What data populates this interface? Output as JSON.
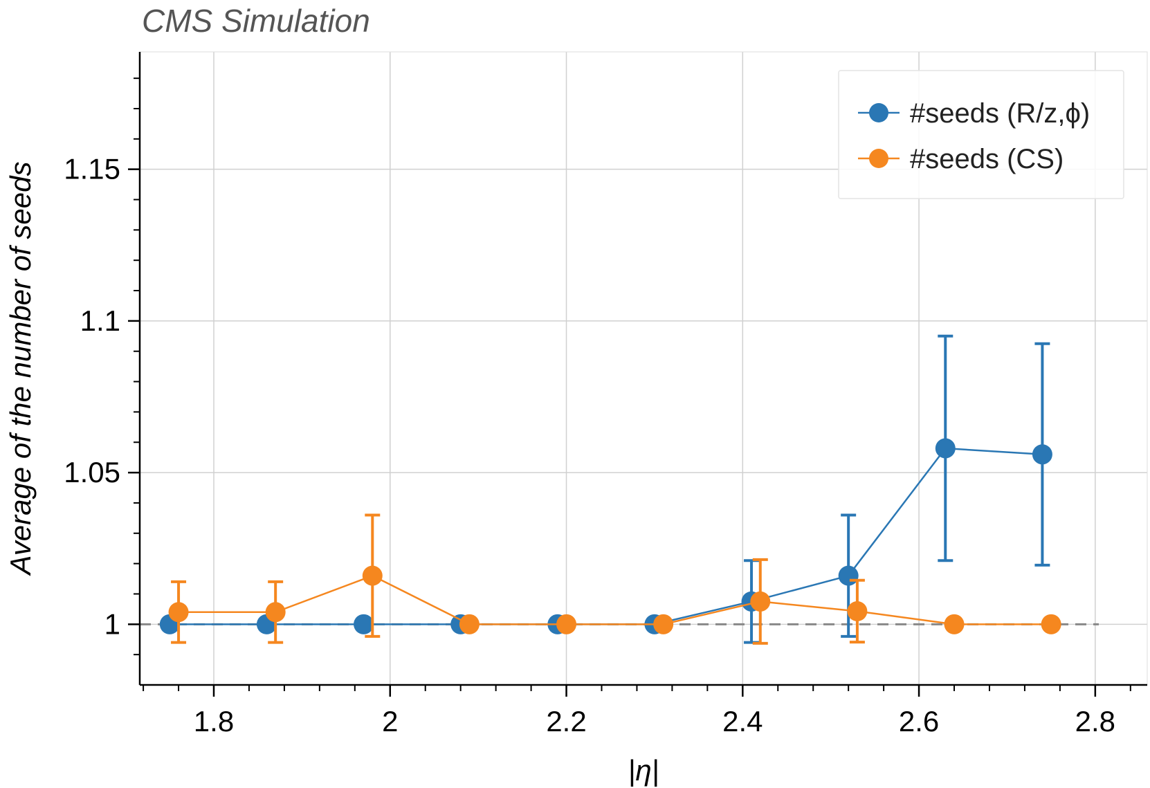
{
  "chart_data": {
    "type": "scatter",
    "title": "CMS Simulation",
    "xlabel": "|η|",
    "ylabel": "Average of the number of seeds",
    "xlim": [
      1.716,
      2.859
    ],
    "ylim": [
      0.98,
      1.1887
    ],
    "x_ticks": [
      1.8,
      2.0,
      2.2,
      2.4,
      2.6,
      2.8
    ],
    "x_tick_labels": [
      "1.8",
      "2",
      "2.2",
      "2.4",
      "2.6",
      "2.8"
    ],
    "y_ticks": [
      1.0,
      1.05,
      1.1,
      1.15
    ],
    "y_tick_labels": [
      "1",
      "1.05",
      "1.1",
      "1.15"
    ],
    "grid": true,
    "reference_line": {
      "y": 1.0,
      "style": "dashed",
      "color": "#888888"
    },
    "legend_position": "top-right",
    "series": [
      {
        "name": "#seeds (R/z,ϕ)",
        "color": "#2A77B4",
        "x": [
          1.75,
          1.86,
          1.97,
          2.08,
          2.19,
          2.3,
          2.41,
          2.52,
          2.63,
          2.74
        ],
        "y": [
          1.0,
          1.0,
          1.0,
          1.0,
          1.0,
          1.0,
          1.0075,
          1.016,
          1.058,
          1.056
        ],
        "yerr_low": [
          0,
          0,
          0,
          0,
          0,
          0,
          0.0135,
          0.02,
          0.037,
          0.0365
        ],
        "yerr_high": [
          0,
          0,
          0,
          0,
          0,
          0,
          0.0135,
          0.02,
          0.037,
          0.0365
        ]
      },
      {
        "name": "#seeds (CS)",
        "color": "#F5871F",
        "x": [
          1.76,
          1.87,
          1.98,
          2.09,
          2.2,
          2.31,
          2.42,
          2.53,
          2.64,
          2.75
        ],
        "y": [
          1.004,
          1.004,
          1.016,
          1.0,
          1.0,
          1.0,
          1.0075,
          1.0043,
          1.0,
          1.0
        ],
        "yerr_low": [
          0.01,
          0.01,
          0.02,
          0,
          0,
          0,
          0.0138,
          0.0102,
          0,
          0
        ],
        "yerr_high": [
          0.01,
          0.01,
          0.02,
          0,
          0,
          0,
          0.0138,
          0.0102,
          0,
          0
        ]
      }
    ]
  }
}
